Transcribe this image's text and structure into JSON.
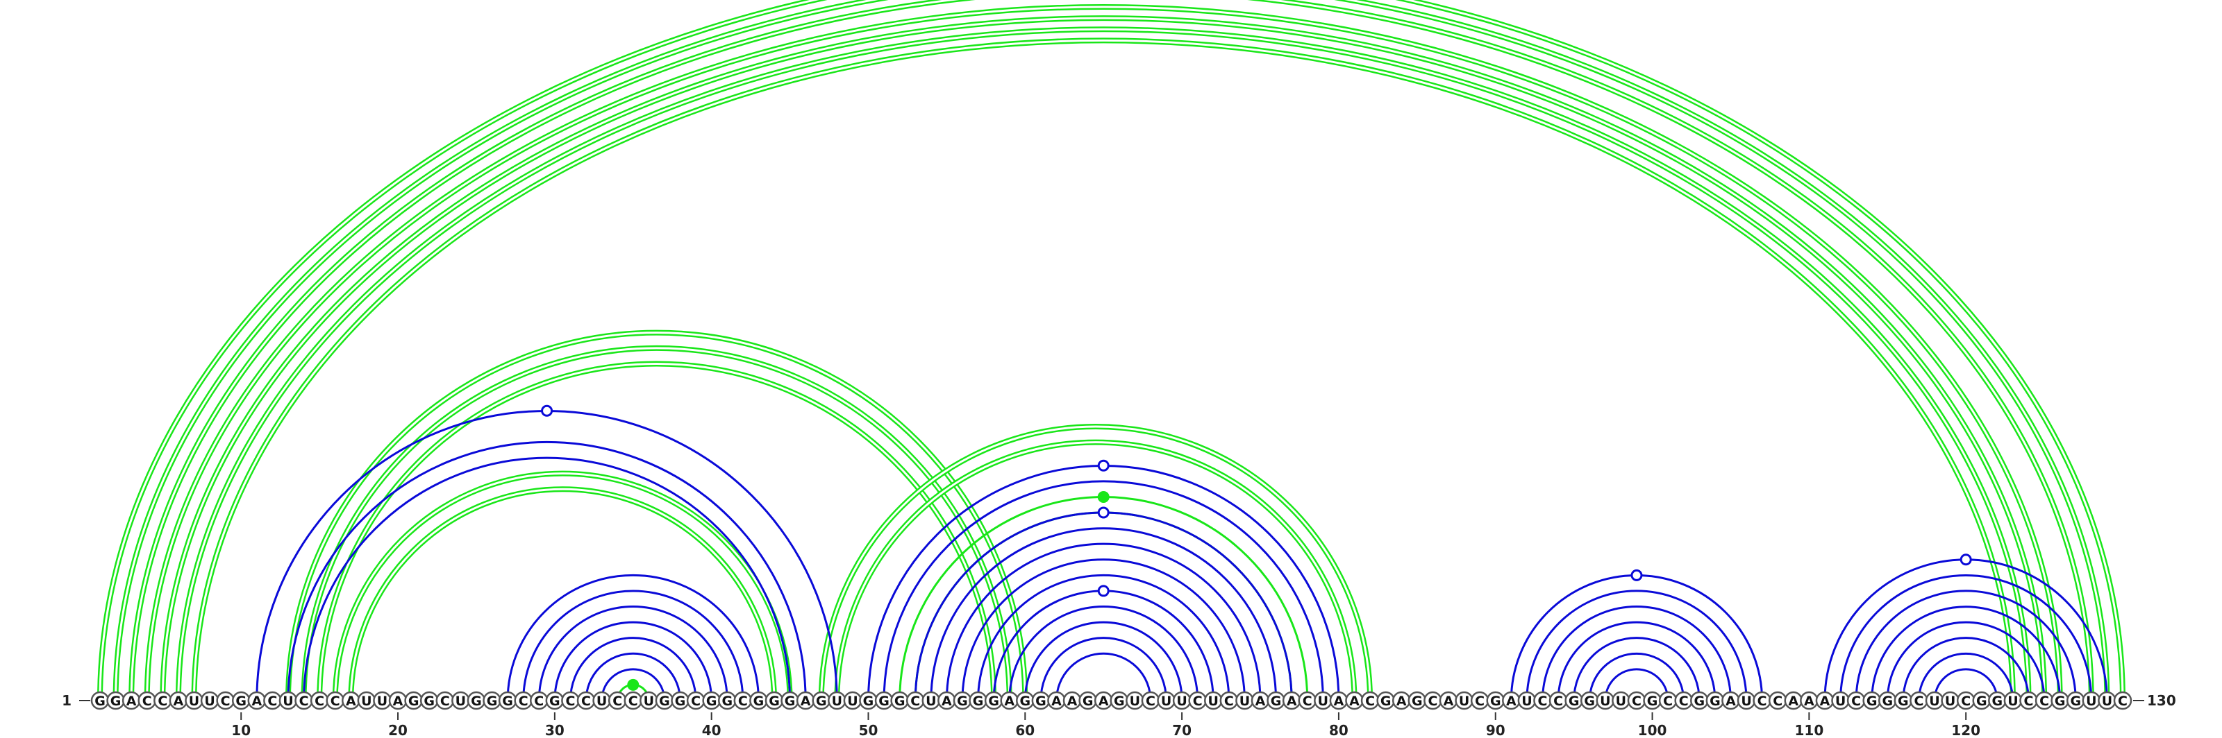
{
  "sequence": "GGACCAUUCGACUCCCAUUAGGCUGGGCCGCCUCCUGGCGGCGGGAGUUGGGCUAGGGAGGAAGAGUCUUCUCUAGACUAACGAGCAUCGAUCCGGUUCGCCGGAUCCAAAUCGGGCUUCGGUCCGGUUC",
  "start_label": "1",
  "end_label": "130",
  "tick_positions": [
    10,
    20,
    30,
    40,
    50,
    60,
    70,
    80,
    90,
    100,
    110,
    120
  ],
  "colors": {
    "structure_a": "#0a0ad8",
    "structure_b": "#19e619"
  },
  "structures": [
    {
      "color_key": "structure_b",
      "helices": [
        {
          "pairs": [
            [
              1,
              130
            ],
            [
              2,
              129
            ],
            [
              3,
              128
            ]
          ],
          "double": true,
          "marker": "open"
        },
        {
          "pairs": [
            [
              4,
              126
            ],
            [
              5,
              125
            ],
            [
              6,
              124
            ],
            [
              7,
              123
            ]
          ],
          "double": true
        },
        {
          "pairs": [
            [
              13,
              60
            ],
            [
              14,
              59
            ],
            [
              15,
              58
            ]
          ],
          "double": true
        },
        {
          "pairs": [
            [
              16,
              45
            ],
            [
              17,
              44
            ]
          ],
          "double": true
        },
        {
          "pairs": [
            [
              34,
              36
            ]
          ],
          "double": false,
          "marker": "filled"
        },
        {
          "pairs": [
            [
              47,
              82
            ],
            [
              48,
              81
            ]
          ],
          "double": true
        },
        {
          "pairs": [
            [
              52,
              78
            ],
            [
              53,
              77
            ]
          ],
          "double": false,
          "marker": "filled"
        }
      ]
    },
    {
      "color_key": "structure_a",
      "helices": [
        {
          "pairs": [
            [
              11,
              48
            ],
            [
              13,
              46
            ],
            [
              14,
              45
            ]
          ],
          "double": false,
          "marker": "open"
        },
        {
          "pairs": [
            [
              27,
              43
            ],
            [
              28,
              42
            ],
            [
              29,
              41
            ],
            [
              30,
              40
            ],
            [
              31,
              39
            ],
            [
              32,
              38
            ],
            [
              33,
              37
            ]
          ],
          "double": false
        },
        {
          "pairs": [
            [
              50,
              80
            ],
            [
              51,
              79
            ]
          ],
          "double": false,
          "marker": "open"
        },
        {
          "pairs": [
            [
              53,
              77
            ],
            [
              54,
              76
            ],
            [
              55,
              75
            ],
            [
              56,
              74
            ],
            [
              57,
              73
            ]
          ],
          "double": false,
          "marker": "open"
        },
        {
          "pairs": [
            [
              58,
              72
            ],
            [
              59,
              71
            ],
            [
              60,
              70
            ],
            [
              61,
              69
            ],
            [
              62,
              68
            ]
          ],
          "double": false,
          "marker": "open"
        },
        {
          "pairs": [
            [
              91,
              107
            ],
            [
              92,
              106
            ],
            [
              93,
              105
            ],
            [
              94,
              104
            ],
            [
              95,
              103
            ],
            [
              96,
              102
            ],
            [
              97,
              101
            ]
          ],
          "double": false,
          "marker": "open"
        },
        {
          "pairs": [
            [
              111,
              129
            ],
            [
              112,
              128
            ],
            [
              113,
              127
            ],
            [
              114,
              126
            ],
            [
              115,
              125
            ],
            [
              116,
              124
            ],
            [
              117,
              123
            ],
            [
              118,
              122
            ]
          ],
          "double": false,
          "marker": "open"
        }
      ]
    }
  ]
}
